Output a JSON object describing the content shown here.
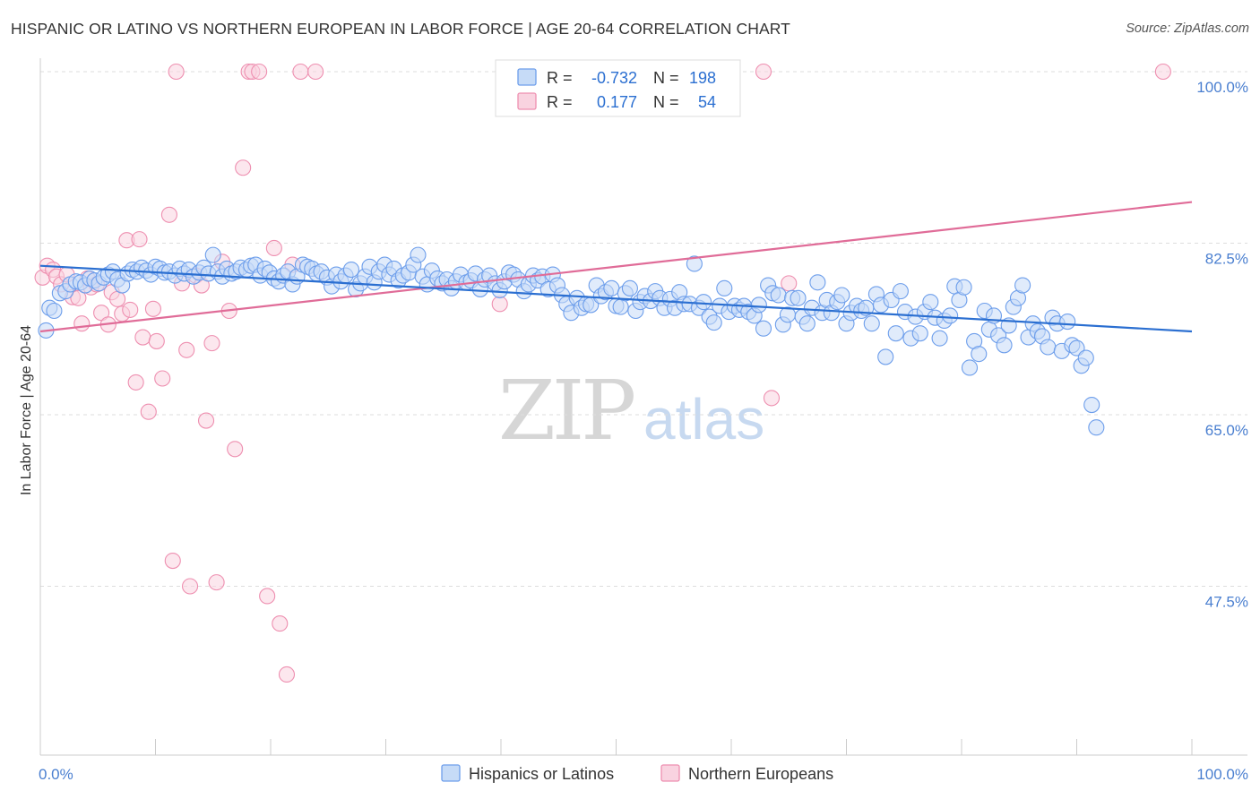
{
  "title": "HISPANIC OR LATINO VS NORTHERN EUROPEAN IN LABOR FORCE | AGE 20-64 CORRELATION CHART",
  "source": "Source: ZipAtlas.com",
  "watermark": {
    "zip": "ZIP",
    "atlas": "atlas"
  },
  "colors": {
    "blue": "#6d9eeb",
    "blue_fill": "#c6dbf7",
    "blue_line": "#2b6fd1",
    "pink": "#ee8fb0",
    "pink_fill": "#f9d3e0",
    "pink_line": "#e06c98",
    "tick_label": "#4a7fd0",
    "grid": "#dddddd"
  },
  "legend_top": {
    "rows": [
      {
        "r_label": "R =",
        "r_value": "-0.732",
        "n_label": "N =",
        "n_value": "198"
      },
      {
        "r_label": "R =",
        "r_value": "0.177",
        "n_label": "N =",
        "n_value": "54"
      }
    ]
  },
  "legend_bottom": [
    "Hispanics or Latinos",
    "Northern Europeans"
  ],
  "chart_data": {
    "type": "scatter",
    "ylabel": "In Labor Force | Age 20-64",
    "xlabel": "",
    "x_ticks": [
      "0.0%",
      "100.0%"
    ],
    "y_ticks": [
      "100.0%",
      "82.5%",
      "65.0%",
      "47.5%"
    ],
    "y_tick_values": [
      100,
      82.5,
      65,
      47.5
    ],
    "xlim": [
      0,
      100
    ],
    "ylim": [
      30,
      101.5
    ],
    "grid": true,
    "legend_position": "bottom",
    "series": [
      {
        "name": "Hispanics or Latinos",
        "trend": {
          "x": [
            0,
            100
          ],
          "y": [
            80.2,
            73.5
          ]
        },
        "points": [
          [
            0.5,
            73.6
          ],
          [
            0.8,
            75.9
          ],
          [
            1.2,
            75.6
          ],
          [
            1.7,
            77.4
          ],
          [
            2.2,
            77.6
          ],
          [
            2.6,
            78.3
          ],
          [
            3.1,
            78.6
          ],
          [
            3.5,
            78.5
          ],
          [
            3.9,
            78.2
          ],
          [
            4.3,
            78.9
          ],
          [
            4.7,
            78.7
          ],
          [
            5.1,
            78.4
          ],
          [
            5.5,
            79.0
          ],
          [
            5.9,
            79.3
          ],
          [
            6.3,
            79.6
          ],
          [
            6.7,
            78.8
          ],
          [
            7.1,
            78.2
          ],
          [
            7.6,
            79.4
          ],
          [
            8.0,
            79.8
          ],
          [
            8.4,
            79.6
          ],
          [
            8.8,
            80.0
          ],
          [
            9.2,
            79.7
          ],
          [
            9.6,
            79.3
          ],
          [
            10.0,
            80.1
          ],
          [
            10.4,
            79.9
          ],
          [
            10.8,
            79.5
          ],
          [
            11.2,
            79.6
          ],
          [
            11.7,
            79.2
          ],
          [
            12.1,
            79.9
          ],
          [
            12.5,
            79.4
          ],
          [
            12.9,
            79.8
          ],
          [
            13.3,
            79.1
          ],
          [
            13.8,
            79.5
          ],
          [
            14.2,
            80.0
          ],
          [
            14.6,
            79.4
          ],
          [
            15.0,
            81.3
          ],
          [
            15.4,
            79.6
          ],
          [
            15.8,
            79.1
          ],
          [
            16.2,
            79.9
          ],
          [
            16.6,
            79.4
          ],
          [
            17.0,
            79.6
          ],
          [
            17.4,
            80.0
          ],
          [
            17.9,
            79.8
          ],
          [
            18.3,
            80.2
          ],
          [
            18.7,
            80.3
          ],
          [
            19.1,
            79.2
          ],
          [
            19.5,
            79.9
          ],
          [
            19.9,
            79.5
          ],
          [
            20.3,
            78.9
          ],
          [
            20.7,
            78.6
          ],
          [
            21.1,
            79.2
          ],
          [
            21.5,
            79.6
          ],
          [
            21.9,
            78.3
          ],
          [
            22.3,
            79.1
          ],
          [
            22.8,
            80.3
          ],
          [
            23.2,
            80.1
          ],
          [
            23.6,
            79.9
          ],
          [
            24.0,
            79.4
          ],
          [
            24.4,
            79.6
          ],
          [
            24.9,
            79.0
          ],
          [
            25.3,
            78.1
          ],
          [
            25.7,
            79.3
          ],
          [
            26.1,
            78.6
          ],
          [
            26.5,
            79.2
          ],
          [
            27.0,
            79.8
          ],
          [
            27.4,
            77.8
          ],
          [
            27.8,
            78.4
          ],
          [
            28.2,
            79.1
          ],
          [
            28.6,
            80.1
          ],
          [
            29.0,
            78.5
          ],
          [
            29.4,
            79.6
          ],
          [
            29.9,
            80.3
          ],
          [
            30.3,
            79.3
          ],
          [
            30.7,
            79.9
          ],
          [
            31.1,
            78.7
          ],
          [
            31.5,
            79.2
          ],
          [
            32.0,
            79.5
          ],
          [
            32.4,
            80.3
          ],
          [
            32.8,
            81.3
          ],
          [
            33.2,
            79.1
          ],
          [
            33.6,
            78.3
          ],
          [
            34.0,
            79.7
          ],
          [
            34.5,
            78.9
          ],
          [
            34.9,
            78.4
          ],
          [
            35.3,
            78.8
          ],
          [
            35.7,
            77.9
          ],
          [
            36.1,
            78.6
          ],
          [
            36.5,
            79.3
          ],
          [
            37.0,
            78.5
          ],
          [
            37.4,
            78.7
          ],
          [
            37.8,
            79.4
          ],
          [
            38.2,
            77.8
          ],
          [
            38.6,
            78.8
          ],
          [
            39.0,
            79.2
          ],
          [
            39.5,
            78.4
          ],
          [
            39.9,
            77.7
          ],
          [
            40.3,
            78.6
          ],
          [
            40.7,
            79.5
          ],
          [
            41.1,
            79.3
          ],
          [
            41.5,
            78.8
          ],
          [
            42.0,
            77.6
          ],
          [
            42.4,
            78.3
          ],
          [
            42.8,
            79.2
          ],
          [
            43.2,
            78.7
          ],
          [
            43.6,
            79.1
          ],
          [
            44.1,
            77.8
          ],
          [
            44.5,
            79.3
          ],
          [
            44.9,
            78.2
          ],
          [
            45.3,
            77.2
          ],
          [
            45.7,
            76.3
          ],
          [
            46.1,
            75.4
          ],
          [
            46.6,
            76.9
          ],
          [
            47.0,
            75.9
          ],
          [
            47.4,
            76.3
          ],
          [
            47.8,
            76.2
          ],
          [
            48.3,
            78.2
          ],
          [
            48.7,
            77.1
          ],
          [
            49.1,
            77.5
          ],
          [
            49.6,
            77.9
          ],
          [
            50.0,
            76.1
          ],
          [
            50.4,
            76.0
          ],
          [
            50.8,
            77.4
          ],
          [
            51.2,
            77.9
          ],
          [
            51.7,
            75.6
          ],
          [
            52.1,
            76.5
          ],
          [
            52.5,
            77.1
          ],
          [
            53.0,
            76.6
          ],
          [
            53.4,
            77.6
          ],
          [
            53.8,
            76.9
          ],
          [
            54.2,
            75.9
          ],
          [
            54.7,
            76.8
          ],
          [
            55.1,
            75.9
          ],
          [
            55.5,
            77.5
          ],
          [
            55.9,
            76.3
          ],
          [
            56.4,
            76.3
          ],
          [
            56.8,
            80.4
          ],
          [
            57.2,
            75.9
          ],
          [
            57.6,
            76.5
          ],
          [
            58.1,
            75.0
          ],
          [
            58.5,
            74.4
          ],
          [
            59.0,
            76.1
          ],
          [
            59.4,
            77.9
          ],
          [
            59.8,
            75.5
          ],
          [
            60.3,
            76.1
          ],
          [
            60.7,
            75.7
          ],
          [
            61.1,
            76.1
          ],
          [
            61.5,
            75.5
          ],
          [
            62.0,
            75.1
          ],
          [
            62.4,
            76.2
          ],
          [
            62.8,
            73.8
          ],
          [
            63.2,
            78.2
          ],
          [
            63.6,
            77.4
          ],
          [
            64.1,
            77.2
          ],
          [
            64.5,
            74.2
          ],
          [
            64.9,
            75.2
          ],
          [
            65.3,
            76.9
          ],
          [
            65.8,
            76.9
          ],
          [
            66.2,
            75.0
          ],
          [
            66.6,
            74.3
          ],
          [
            67.0,
            75.9
          ],
          [
            67.5,
            78.5
          ],
          [
            67.9,
            75.4
          ],
          [
            68.3,
            76.7
          ],
          [
            68.7,
            75.4
          ],
          [
            69.2,
            76.5
          ],
          [
            69.6,
            77.2
          ],
          [
            70.0,
            74.3
          ],
          [
            70.4,
            75.4
          ],
          [
            70.9,
            76.1
          ],
          [
            71.3,
            75.6
          ],
          [
            71.7,
            75.9
          ],
          [
            72.2,
            74.3
          ],
          [
            72.6,
            77.3
          ],
          [
            73.0,
            76.2
          ],
          [
            73.4,
            70.9
          ],
          [
            73.9,
            76.7
          ],
          [
            74.3,
            73.3
          ],
          [
            74.7,
            77.6
          ],
          [
            75.1,
            75.5
          ],
          [
            75.6,
            72.8
          ],
          [
            76.0,
            75.0
          ],
          [
            76.4,
            73.3
          ],
          [
            76.8,
            75.5
          ],
          [
            77.3,
            76.5
          ],
          [
            77.7,
            74.9
          ],
          [
            78.1,
            72.8
          ],
          [
            78.5,
            74.6
          ],
          [
            79.0,
            75.1
          ],
          [
            79.4,
            78.1
          ],
          [
            79.8,
            76.7
          ],
          [
            80.2,
            78.0
          ],
          [
            80.7,
            69.8
          ],
          [
            81.1,
            72.5
          ],
          [
            81.5,
            71.2
          ],
          [
            82.0,
            75.6
          ],
          [
            82.4,
            73.7
          ],
          [
            82.8,
            75.1
          ],
          [
            83.2,
            73.1
          ],
          [
            83.7,
            72.1
          ],
          [
            84.1,
            74.1
          ],
          [
            84.5,
            76.0
          ],
          [
            84.9,
            76.9
          ],
          [
            85.3,
            78.2
          ],
          [
            85.8,
            72.9
          ],
          [
            86.2,
            74.3
          ],
          [
            86.6,
            73.5
          ],
          [
            87.0,
            73.0
          ],
          [
            87.5,
            71.9
          ],
          [
            87.9,
            74.9
          ],
          [
            88.3,
            74.3
          ],
          [
            88.7,
            71.5
          ],
          [
            89.2,
            74.5
          ],
          [
            89.6,
            72.1
          ],
          [
            90.0,
            71.8
          ],
          [
            90.4,
            70.0
          ],
          [
            90.8,
            70.8
          ],
          [
            91.3,
            66.0
          ],
          [
            91.7,
            63.7
          ]
        ]
      },
      {
        "name": "Northern Europeans",
        "trend": {
          "x": [
            0,
            100
          ],
          "y": [
            73.5,
            86.7
          ]
        },
        "points": [
          [
            0.2,
            79.0
          ],
          [
            0.6,
            80.2
          ],
          [
            1.1,
            79.8
          ],
          [
            1.4,
            79.1
          ],
          [
            1.8,
            78.3
          ],
          [
            2.3,
            79.3
          ],
          [
            2.8,
            77.0
          ],
          [
            3.3,
            76.9
          ],
          [
            3.6,
            74.3
          ],
          [
            4.1,
            78.9
          ],
          [
            4.4,
            78.0
          ],
          [
            4.9,
            78.3
          ],
          [
            5.3,
            75.4
          ],
          [
            5.9,
            74.2
          ],
          [
            6.2,
            77.5
          ],
          [
            6.7,
            76.8
          ],
          [
            7.1,
            75.3
          ],
          [
            7.5,
            82.8
          ],
          [
            7.8,
            75.7
          ],
          [
            8.3,
            68.3
          ],
          [
            8.6,
            82.9
          ],
          [
            8.9,
            72.9
          ],
          [
            9.4,
            65.3
          ],
          [
            9.8,
            75.8
          ],
          [
            10.1,
            72.5
          ],
          [
            10.6,
            68.7
          ],
          [
            11.2,
            85.4
          ],
          [
            11.5,
            50.1
          ],
          [
            11.8,
            100.0
          ],
          [
            12.3,
            78.4
          ],
          [
            12.7,
            71.6
          ],
          [
            13.0,
            47.5
          ],
          [
            13.5,
            79.2
          ],
          [
            14.0,
            78.2
          ],
          [
            14.4,
            64.4
          ],
          [
            14.9,
            72.3
          ],
          [
            15.3,
            47.9
          ],
          [
            15.8,
            80.6
          ],
          [
            16.4,
            75.6
          ],
          [
            16.9,
            61.5
          ],
          [
            17.6,
            90.2
          ],
          [
            18.1,
            100.0
          ],
          [
            18.4,
            100.0
          ],
          [
            19.0,
            100.0
          ],
          [
            19.7,
            46.5
          ],
          [
            20.3,
            82.0
          ],
          [
            20.8,
            43.7
          ],
          [
            21.4,
            38.5
          ],
          [
            21.9,
            80.3
          ],
          [
            22.6,
            100.0
          ],
          [
            23.9,
            100.0
          ],
          [
            39.9,
            76.3
          ],
          [
            45.5,
            100.0
          ],
          [
            62.8,
            100.0
          ],
          [
            63.5,
            66.7
          ],
          [
            65.0,
            78.4
          ],
          [
            97.5,
            100.0
          ]
        ]
      }
    ]
  }
}
